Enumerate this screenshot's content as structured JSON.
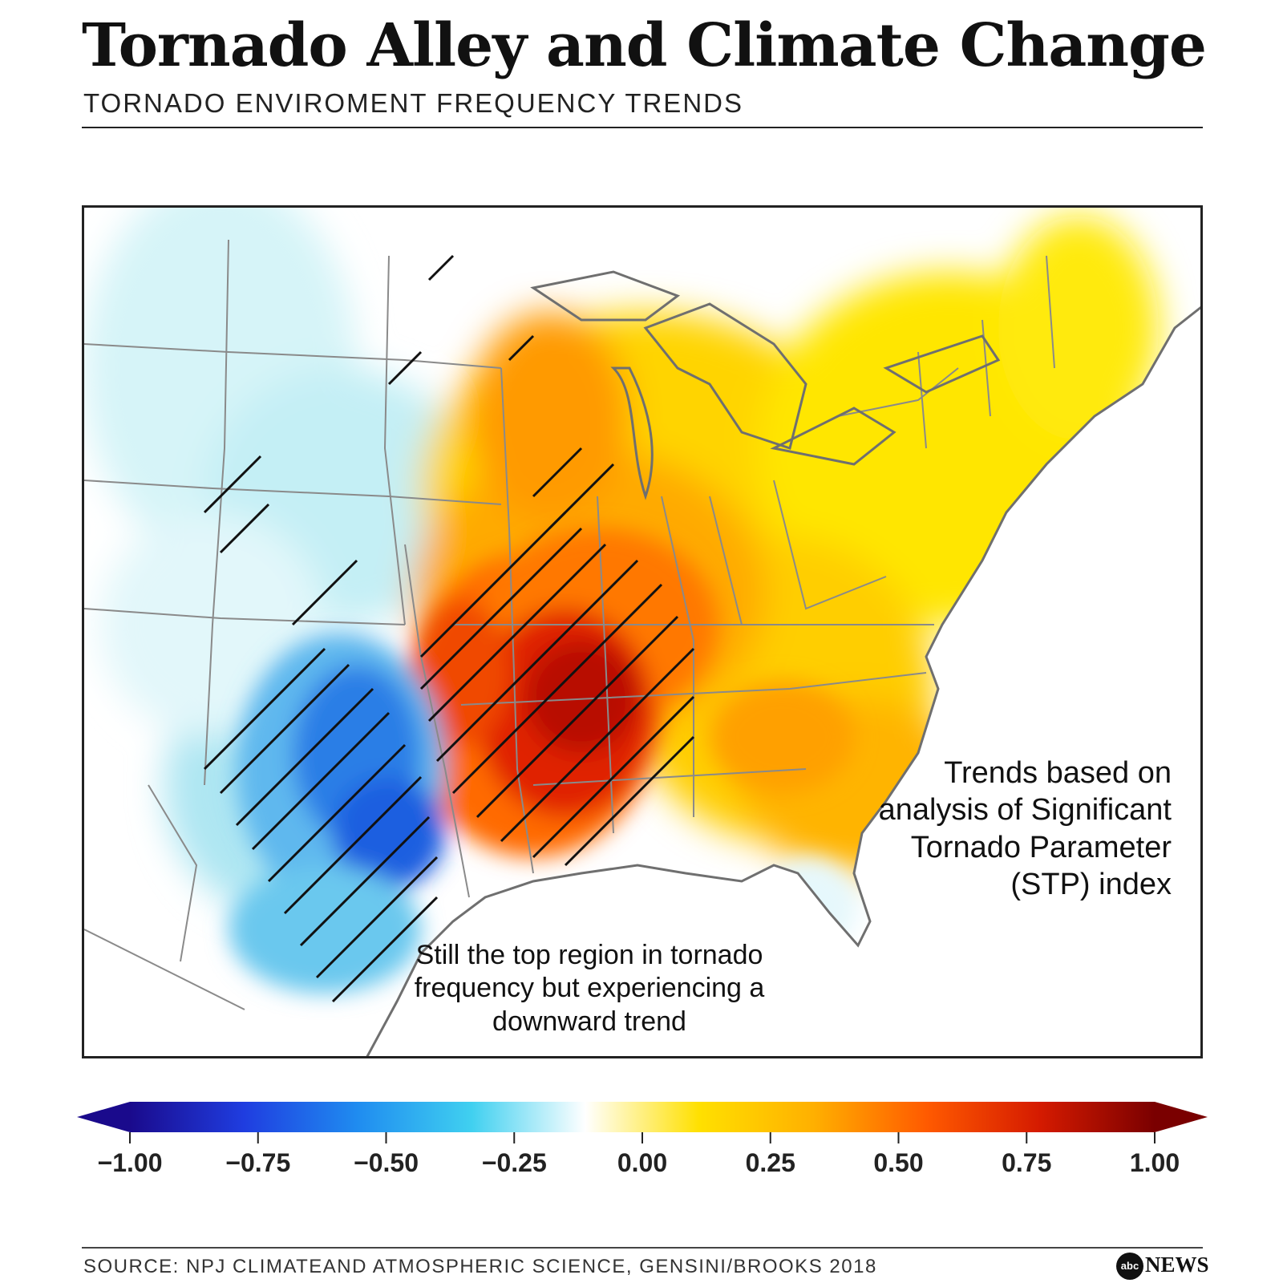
{
  "header": {
    "title": "Tornado Alley and Climate Change",
    "subtitle": "TORNADO ENVIROMENT FREQUENCY TRENDS"
  },
  "annotations": {
    "right": [
      "Trends based on",
      "analysis of Significant",
      "Tornado Parameter",
      "(STP) index"
    ],
    "bottom": [
      "Still the top region in tornado",
      "frequency but experiencing a",
      "downward trend"
    ]
  },
  "colorbar": {
    "min": -1.0,
    "max": 1.0,
    "extend": "both",
    "ticks": [
      "−1.00",
      "−0.75",
      "−0.50",
      "−0.25",
      "0.00",
      "0.25",
      "0.50",
      "0.75",
      "1.00"
    ],
    "colors": [
      "#1a0a8c",
      "#1f3de0",
      "#1f8cf0",
      "#40d0f0",
      "#ffffff",
      "#ffe000",
      "#ffb000",
      "#ff5a00",
      "#d41a00",
      "#7a0000"
    ]
  },
  "footer": {
    "source": "SOURCE: NPJ CLIMATEAND ATMOSPHERIC SCIENCE, GENSINI/BROOKS 2018",
    "logo_mark": "abc",
    "logo_text": "NEWS"
  },
  "icons": [
    "abc-news-logo-icon"
  ]
}
